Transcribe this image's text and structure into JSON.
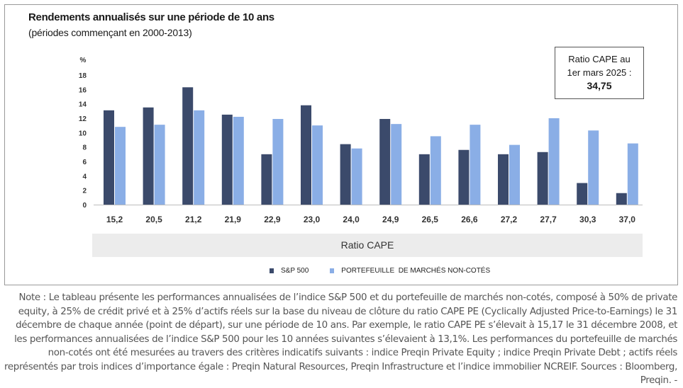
{
  "chart_data": {
    "type": "bar",
    "title": "Rendements annualisés sur une période de 10 ans",
    "subtitle": "(périodes commençant en 2000-2013)",
    "unit_label": "%",
    "xlabel": "Ratio CAPE",
    "ylim": [
      0,
      18
    ],
    "yticks": [
      0,
      2,
      4,
      6,
      8,
      10,
      12,
      14,
      16,
      18
    ],
    "categories": [
      "15,2",
      "20,5",
      "21,2",
      "21,9",
      "22,9",
      "23,0",
      "24,0",
      "24,9",
      "26,5",
      "26,6",
      "27,2",
      "27,7",
      "30,3",
      "37,0"
    ],
    "series": [
      {
        "name": "S&P 500",
        "color": "#3b4a6b",
        "values": [
          13.1,
          13.5,
          16.3,
          12.5,
          7.0,
          13.8,
          8.4,
          11.9,
          7.0,
          7.6,
          7.0,
          7.3,
          3.0,
          1.6
        ]
      },
      {
        "name": "PORTEFEUILLE  DE MARCHÉS NON-COTÉS",
        "color": "#8aaee6",
        "values": [
          10.8,
          11.1,
          13.1,
          12.2,
          11.9,
          11.0,
          7.8,
          11.2,
          9.5,
          11.1,
          8.3,
          12.0,
          10.3,
          8.5
        ]
      }
    ],
    "grid": false,
    "legend_position": "bottom"
  },
  "cape_box": {
    "line1": "Ratio CAPE au",
    "line2": "1er mars 2025 :",
    "value": "34,75"
  },
  "note": "Note : Le tableau présente les performances annualisées de l’indice S&P 500 et du portefeuille de marchés non-cotés, composé à 50% de private equity, à 25% de crédit privé et à 25% d’actifs réels sur la base du niveau de clôture du ratio CAPE PE (Cyclically Adjusted Price-to-Earnings) le 31 décembre de chaque année (point de départ), sur une période de 10 ans. Par exemple, le ratio CAPE PE s’élevait à 15,17 le 31 décembre 2008, et les performances annualisées de l’indice S&P 500 pour les 10 années suivantes s’élevaient à 13,1%. Les performances du portefeuille de marchés non-cotés ont été mesurées au travers des critères indicatifs suivants : indice Preqin Private Equity ; indice Preqin Private Debt ; actifs réels représentés par trois indices d’importance égale : Preqin Natural Resources, Preqin Infrastructure et l’indice immobilier NCREIF. Sources : Bloomberg, Preqin.  -"
}
